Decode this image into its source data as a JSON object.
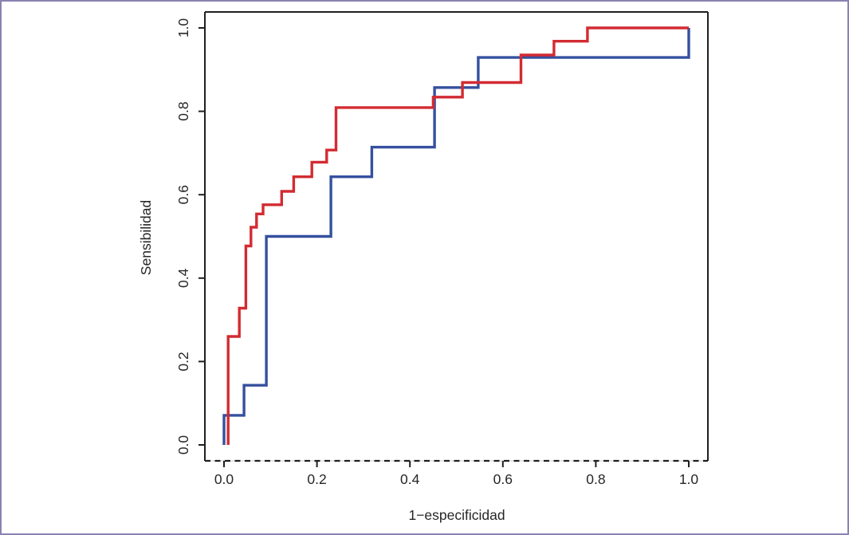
{
  "figure": {
    "background_color": "#ffffff",
    "border_color": "#8983b3"
  },
  "chart_data": {
    "type": "line",
    "subtype": "roc_step_curves",
    "title": "",
    "xlabel": "1−especificidad",
    "ylabel": "Sensibilidad",
    "xlim": [
      0,
      1
    ],
    "ylim": [
      0,
      1
    ],
    "x_ticks": [
      "0.0",
      "0.2",
      "0.4",
      "0.6",
      "0.8",
      "1.0"
    ],
    "x_tick_values": [
      0.0,
      0.2,
      0.4,
      0.6,
      0.8,
      1.0
    ],
    "y_ticks": [
      "0.0",
      "0.2",
      "0.4",
      "0.6",
      "0.8",
      "1.0"
    ],
    "y_tick_values": [
      0.0,
      0.2,
      0.4,
      0.6,
      0.8,
      1.0
    ],
    "grid": false,
    "legend_position": "none",
    "axis_color": "#1f1f1f",
    "frame_style": {
      "top": "solid",
      "left": "solid",
      "right": "solid",
      "bottom": "dashed"
    },
    "series": [
      {
        "name": "roc-curve-blue",
        "color": "#35509f",
        "line_width": 3.4,
        "points": [
          [
            0.0,
            0.0
          ],
          [
            0.0,
            0.071
          ],
          [
            0.043,
            0.071
          ],
          [
            0.043,
            0.143
          ],
          [
            0.091,
            0.143
          ],
          [
            0.091,
            0.5
          ],
          [
            0.23,
            0.5
          ],
          [
            0.23,
            0.643
          ],
          [
            0.318,
            0.643
          ],
          [
            0.318,
            0.714
          ],
          [
            0.453,
            0.714
          ],
          [
            0.453,
            0.857
          ],
          [
            0.547,
            0.857
          ],
          [
            0.547,
            0.929
          ],
          [
            1.0,
            0.929
          ],
          [
            1.0,
            1.0
          ]
        ]
      },
      {
        "name": "roc-curve-red",
        "color": "#d32b32",
        "line_width": 3.4,
        "points": [
          [
            0.009,
            0.0
          ],
          [
            0.009,
            0.26
          ],
          [
            0.033,
            0.26
          ],
          [
            0.033,
            0.328
          ],
          [
            0.047,
            0.328
          ],
          [
            0.047,
            0.477
          ],
          [
            0.058,
            0.477
          ],
          [
            0.058,
            0.522
          ],
          [
            0.07,
            0.522
          ],
          [
            0.07,
            0.554
          ],
          [
            0.084,
            0.554
          ],
          [
            0.084,
            0.576
          ],
          [
            0.124,
            0.576
          ],
          [
            0.124,
            0.608
          ],
          [
            0.15,
            0.608
          ],
          [
            0.15,
            0.643
          ],
          [
            0.189,
            0.643
          ],
          [
            0.189,
            0.678
          ],
          [
            0.221,
            0.678
          ],
          [
            0.221,
            0.707
          ],
          [
            0.241,
            0.707
          ],
          [
            0.241,
            0.809
          ],
          [
            0.45,
            0.809
          ],
          [
            0.45,
            0.834
          ],
          [
            0.513,
            0.834
          ],
          [
            0.513,
            0.869
          ],
          [
            0.639,
            0.869
          ],
          [
            0.639,
            0.935
          ],
          [
            0.71,
            0.935
          ],
          [
            0.71,
            0.968
          ],
          [
            0.782,
            0.968
          ],
          [
            0.782,
            1.0
          ],
          [
            1.0,
            1.0
          ]
        ]
      }
    ]
  }
}
